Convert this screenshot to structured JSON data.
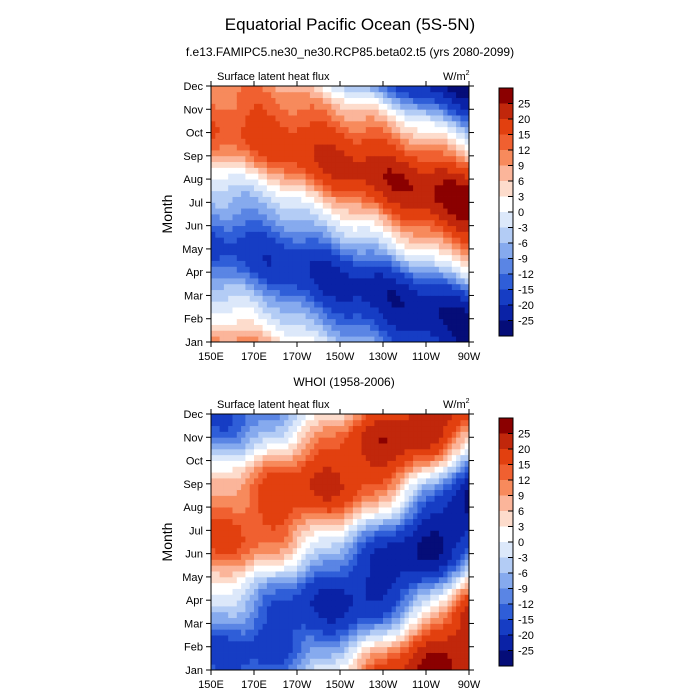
{
  "page": {
    "title": "Equatorial Pacific Ocean (5S-5N)",
    "subtitle": "f.e13.FAMIPC5.ne30_ne30.RCP85.beta02.t5 (yrs 2080-2099)",
    "colorbar_levels": [
      "25",
      "20",
      "15",
      "12",
      "9",
      "6",
      "3",
      "0",
      "-3",
      "-6",
      "-9",
      "-12",
      "-15",
      "-20",
      "-25"
    ],
    "colorbar_colors": [
      "#8b0000",
      "#c1270b",
      "#e2400f",
      "#f06030",
      "#f78a5c",
      "#fbb59a",
      "#fddccc",
      "#ffffff",
      "#dce8fa",
      "#b3ccf5",
      "#86aaee",
      "#5a85e4",
      "#2f5ed8",
      "#163dc4",
      "#0a22a6",
      "#050d78"
    ]
  },
  "chart_data": [
    {
      "type": "heatmap",
      "title": "",
      "left_label": "Surface latent heat flux",
      "right_label": "W/m",
      "units_superscript": "2",
      "xlabel": "",
      "ylabel": "Month",
      "x_ticks": [
        "150E",
        "170E",
        "170W",
        "150W",
        "130W",
        "110W",
        "90W"
      ],
      "x_range": [
        150,
        270
      ],
      "y_ticks": [
        "Jan",
        "Feb",
        "Mar",
        "Apr",
        "May",
        "Jun",
        "Jul",
        "Aug",
        "Sep",
        "Oct",
        "Nov",
        "Dec"
      ],
      "y_range": [
        1,
        12
      ],
      "phase_line_lon": [
        150,
        165,
        180,
        195,
        210,
        225,
        240,
        255,
        270
      ],
      "phase_line_month": [
        8.1,
        7.8,
        7.4,
        6.7,
        6.2,
        5.7,
        5.1,
        4.6,
        4.1
      ],
      "positive_peak": 25,
      "negative_peak": -25
    },
    {
      "type": "heatmap",
      "title": "WHOI (1958-2006)",
      "left_label": "Surface latent heat flux",
      "right_label": "W/m",
      "units_superscript": "2",
      "xlabel": "",
      "ylabel": "Month",
      "x_ticks": [
        "150E",
        "170E",
        "170W",
        "150W",
        "130W",
        "110W",
        "90W"
      ],
      "x_range": [
        150,
        270
      ],
      "y_ticks": [
        "Jan",
        "Feb",
        "Mar",
        "Apr",
        "May",
        "Jun",
        "Jul",
        "Aug",
        "Sep",
        "Oct",
        "Nov",
        "Dec"
      ],
      "y_range": [
        1,
        12
      ],
      "phase_line_lon": [
        150,
        165,
        180,
        195,
        210,
        225,
        240,
        255,
        270
      ],
      "phase_line_month": [
        4.1,
        4.6,
        5.4,
        6.2,
        6.8,
        7.6,
        8.5,
        9.5,
        10.6
      ],
      "positive_peak": 25,
      "negative_peak": -25
    }
  ]
}
